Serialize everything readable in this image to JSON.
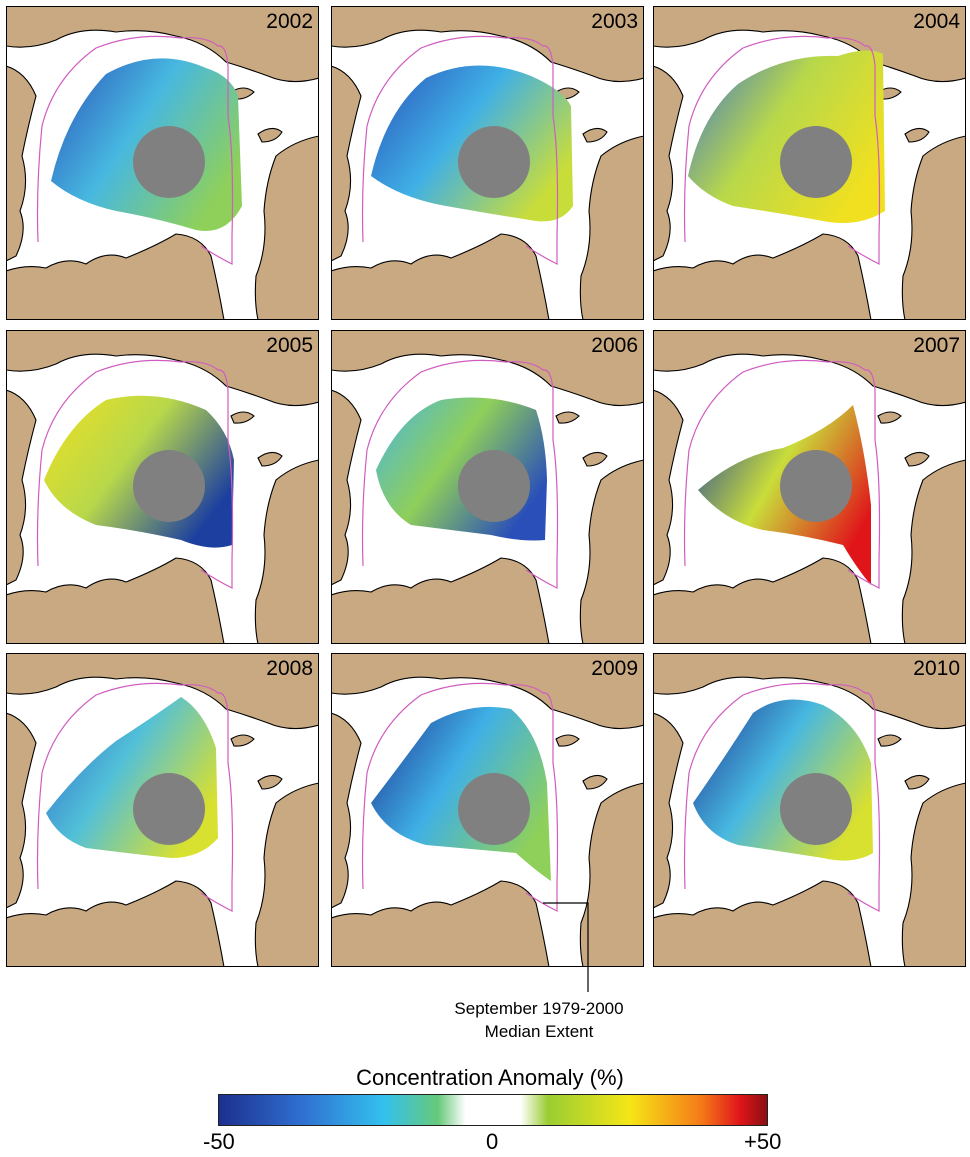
{
  "panels": [
    {
      "year": "2002"
    },
    {
      "year": "2003"
    },
    {
      "year": "2004"
    },
    {
      "year": "2005"
    },
    {
      "year": "2006"
    },
    {
      "year": "2007"
    },
    {
      "year": "2008"
    },
    {
      "year": "2009"
    },
    {
      "year": "2010"
    }
  ],
  "annotation": {
    "line1": "September 1979-2000",
    "line2": "Median Extent"
  },
  "colorbar": {
    "title": "Concentration Anomaly (%)",
    "min_label": "-50",
    "mid_label": "0",
    "max_label": "+50",
    "stops": [
      {
        "value": -50,
        "color": "#1c2f8e"
      },
      {
        "value": -35,
        "color": "#2f6fd0"
      },
      {
        "value": -20,
        "color": "#33c1ee"
      },
      {
        "value": -10,
        "color": "#66c97a"
      },
      {
        "value": -5,
        "color": "#ffffff"
      },
      {
        "value": 5,
        "color": "#ffffff"
      },
      {
        "value": 10,
        "color": "#9acd32"
      },
      {
        "value": 25,
        "color": "#f5e617"
      },
      {
        "value": 38,
        "color": "#f57a18"
      },
      {
        "value": 45,
        "color": "#e0151a"
      },
      {
        "value": 50,
        "color": "#8b0f12"
      }
    ]
  },
  "colors": {
    "land": "#c9a982",
    "ocean": "#ffffff",
    "pole_hole": "#808080",
    "median_extent_line": "#d05cc0",
    "coast": "#000000"
  }
}
